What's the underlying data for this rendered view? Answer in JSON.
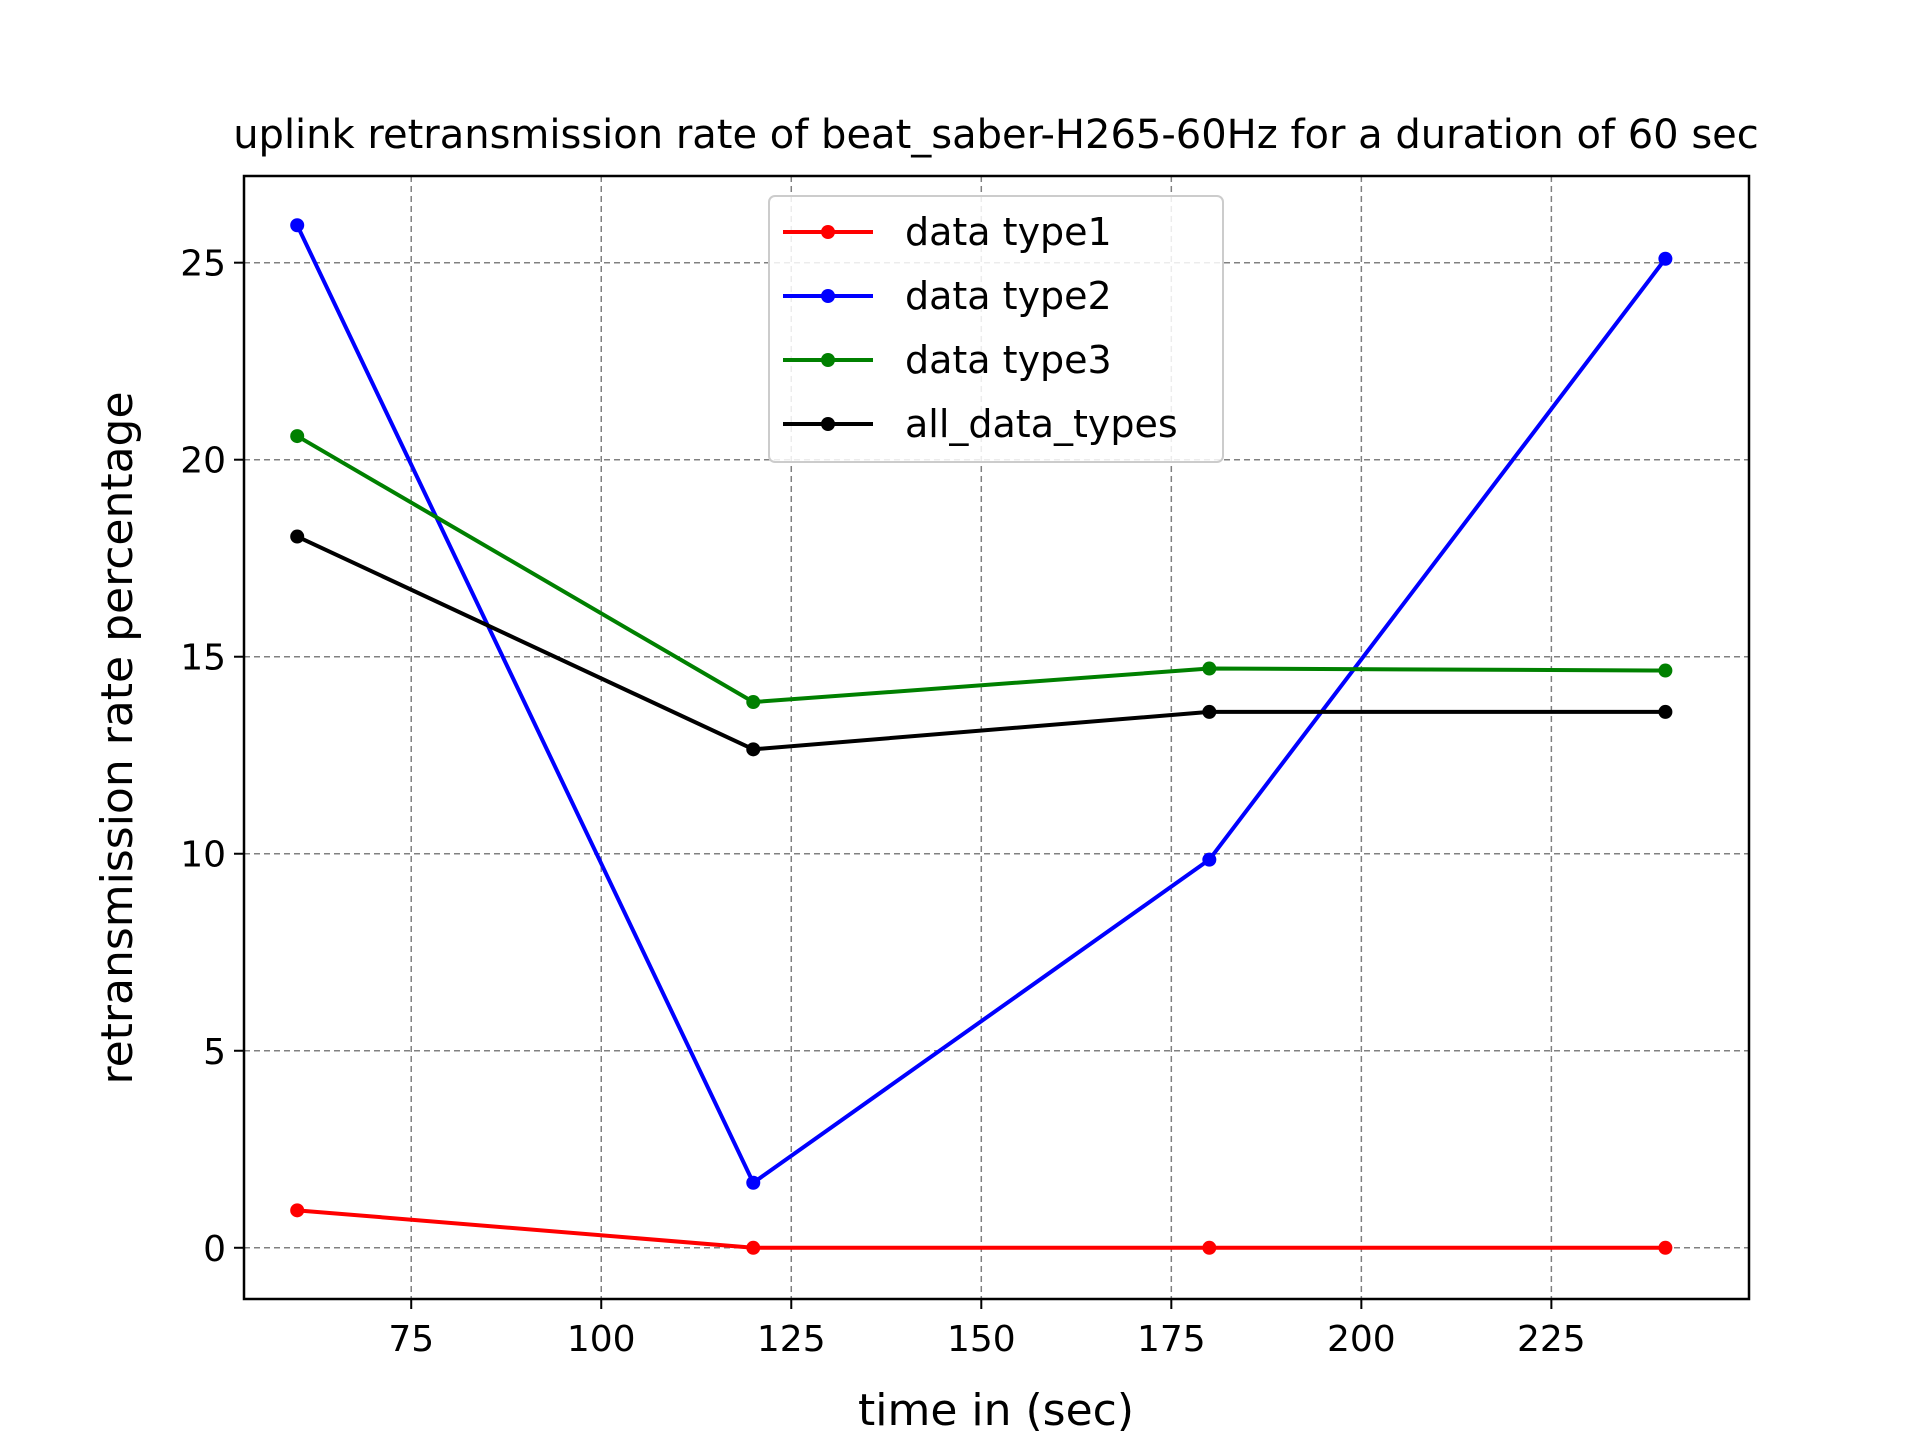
{
  "chart_data": {
    "type": "line",
    "title": "uplink retransmission rate of beat_saber-H265-60Hz for a duration of 60 sec",
    "xlabel": "time in (sec)",
    "ylabel": "retransmission rate percentage",
    "x": [
      60,
      120,
      180,
      240
    ],
    "xlim": [
      53,
      251
    ],
    "ylim": [
      -1.3,
      27.2
    ],
    "xticks": [
      75,
      100,
      125,
      150,
      175,
      200,
      225
    ],
    "yticks": [
      0,
      5,
      10,
      15,
      20,
      25
    ],
    "grid": true,
    "legend_position": "upper-center",
    "series": [
      {
        "name": "data type1",
        "color": "#ff0000",
        "values": [
          0.95,
          0.0,
          0.0,
          0.0
        ]
      },
      {
        "name": "data type2",
        "color": "#0000ff",
        "values": [
          25.95,
          1.65,
          9.85,
          25.1
        ]
      },
      {
        "name": "data type3",
        "color": "#008000",
        "values": [
          20.6,
          13.85,
          14.7,
          14.65
        ]
      },
      {
        "name": "all_data_types",
        "color": "#000000",
        "values": [
          18.05,
          12.65,
          13.6,
          13.6
        ]
      }
    ]
  }
}
